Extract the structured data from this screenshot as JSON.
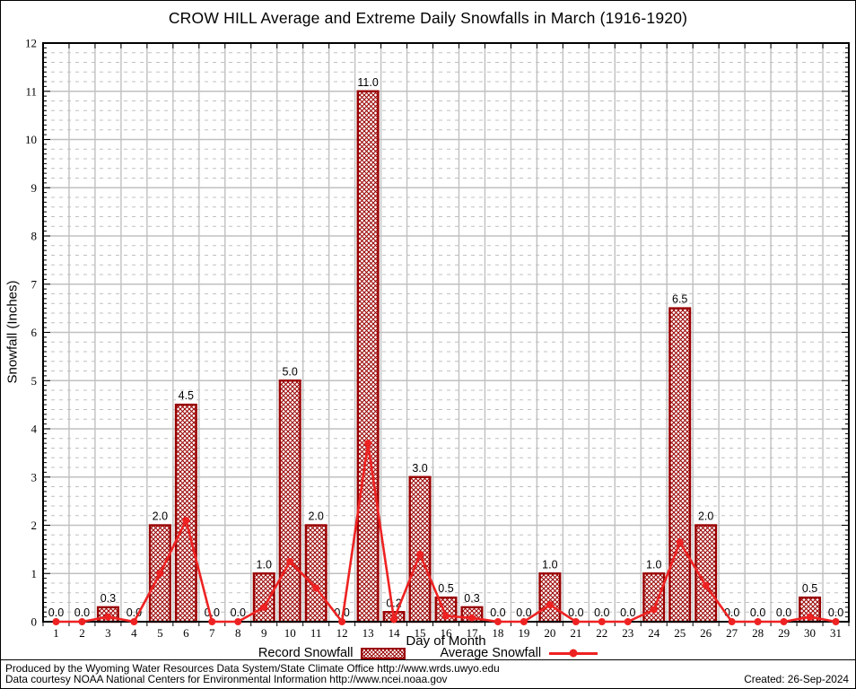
{
  "title": "CROW HILL Average and Extreme Daily Snowfalls in March (1916-1920)",
  "chart_data": {
    "type": "bar",
    "title": "CROW HILL Average and Extreme Daily Snowfalls in March (1916-1920)",
    "xlabel": "Day of Month",
    "ylabel": "Snowfall (Inches)",
    "ylim": [
      0,
      12
    ],
    "grid": "on",
    "legend_position": "bottom-center",
    "categories": [
      1,
      2,
      3,
      4,
      5,
      6,
      7,
      8,
      9,
      10,
      11,
      12,
      13,
      14,
      15,
      16,
      17,
      18,
      19,
      20,
      21,
      22,
      23,
      24,
      25,
      26,
      27,
      28,
      29,
      30,
      31
    ],
    "series": [
      {
        "name": "Record Snowfall",
        "type": "bar",
        "values": [
          0.0,
          0.0,
          0.3,
          0.0,
          2.0,
          4.5,
          0.0,
          0.0,
          1.0,
          5.0,
          2.0,
          0.0,
          11.0,
          0.2,
          3.0,
          0.5,
          0.3,
          0.0,
          0.0,
          1.0,
          0.0,
          0.0,
          0.0,
          1.0,
          6.5,
          2.0,
          0.0,
          0.0,
          0.0,
          0.5,
          0.0
        ]
      },
      {
        "name": "Average Snowfall",
        "type": "line",
        "values": [
          0.0,
          0.0,
          0.1,
          0.0,
          1.0,
          2.1,
          0.0,
          0.0,
          0.3,
          1.25,
          0.7,
          0.0,
          3.7,
          0.05,
          1.4,
          0.12,
          0.08,
          0.0,
          0.0,
          0.35,
          0.0,
          0.0,
          0.0,
          0.25,
          1.65,
          0.75,
          0.0,
          0.0,
          0.0,
          0.1,
          0.0
        ]
      }
    ],
    "colors": {
      "bar": "#990000",
      "line": "#ee2222",
      "grid": "#c0c0c0"
    }
  },
  "footer": {
    "line1": "Produced by the Wyoming Water Resources Data System/State Climate Office http://www.wrds.uwyo.edu",
    "line2": "Data courtesy NOAA National Centers for Environmental Information http://www.ncei.noaa.gov",
    "created": "Created: 26-Sep-2024"
  }
}
